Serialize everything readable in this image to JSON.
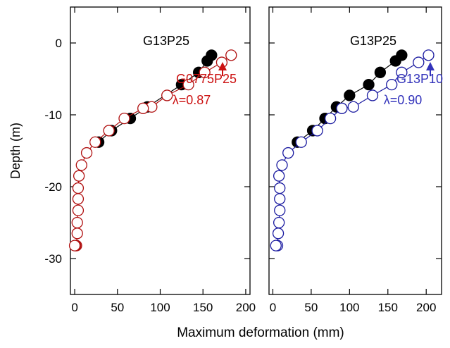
{
  "chart_data": [
    {
      "type": "scatter",
      "panel": "left",
      "xlabel": "",
      "ylabel": "Depth (m)",
      "xlim": [
        -5,
        205
      ],
      "ylim": [
        -35,
        5
      ],
      "xticks": [
        0,
        50,
        100,
        150,
        200
      ],
      "yticks": [
        0,
        -10,
        -20,
        -30
      ],
      "annotations": [
        {
          "text": "G13P25",
          "color": "#000000"
        },
        {
          "text": "G0775P25",
          "color": "#cc1111"
        },
        {
          "text": "λ=0.87",
          "color": "#cc1111"
        }
      ],
      "series": [
        {
          "marker": "filled-circle",
          "color": "#000000",
          "x": [
            160,
            155,
            145,
            125,
            85,
            65,
            43,
            28
          ],
          "y": [
            -1.7,
            -2.5,
            -4.1,
            -5.8,
            -8.9,
            -10.5,
            -12.2,
            -13.8
          ]
        },
        {
          "marker": "open-circle",
          "color": "#b01010",
          "x": [
            183,
            172,
            152,
            133,
            108,
            90,
            80,
            58,
            40,
            24,
            14,
            8,
            5,
            4,
            4,
            4,
            3,
            3,
            2,
            1,
            0
          ],
          "y": [
            -1.7,
            -2.7,
            -4.1,
            -5.8,
            -7.3,
            -8.9,
            -9.1,
            -10.5,
            -12.2,
            -13.8,
            -15.3,
            -17.0,
            -18.5,
            -20.2,
            -21.7,
            -23.3,
            -25.0,
            -26.5,
            -28.2,
            -28.2,
            -28.2
          ]
        }
      ]
    },
    {
      "type": "scatter",
      "panel": "right",
      "xlabel": "",
      "ylabel": "",
      "xlim": [
        -5,
        220
      ],
      "ylim": [
        -35,
        5
      ],
      "xticks": [
        0,
        50,
        100,
        150,
        200
      ],
      "yticks": [
        0,
        -10,
        -20,
        -30
      ],
      "annotations": [
        {
          "text": "G13P25",
          "color": "#000000"
        },
        {
          "text": "G13P10",
          "color": "#3333bb"
        },
        {
          "text": "λ=0.90",
          "color": "#3333bb"
        }
      ],
      "series": [
        {
          "marker": "filled-circle",
          "color": "#000000",
          "x": [
            168,
            160,
            140,
            125,
            100,
            83,
            68,
            52,
            32
          ],
          "y": [
            -1.7,
            -2.5,
            -4.1,
            -5.8,
            -7.3,
            -8.9,
            -10.5,
            -12.2,
            -13.8
          ]
        },
        {
          "marker": "open-circle",
          "color": "#1a1aa0",
          "x": [
            203,
            190,
            168,
            155,
            130,
            105,
            90,
            75,
            58,
            37,
            20,
            12,
            8,
            9,
            9,
            9,
            8,
            7,
            6,
            4
          ],
          "y": [
            -1.7,
            -2.7,
            -4.1,
            -5.8,
            -7.3,
            -8.9,
            -9.1,
            -10.5,
            -12.2,
            -13.8,
            -15.3,
            -17.0,
            -18.5,
            -20.2,
            -21.7,
            -23.3,
            -25.0,
            -26.5,
            -28.2,
            -28.2
          ]
        }
      ]
    }
  ],
  "shared_xlabel": "Maximum deformation (mm)"
}
